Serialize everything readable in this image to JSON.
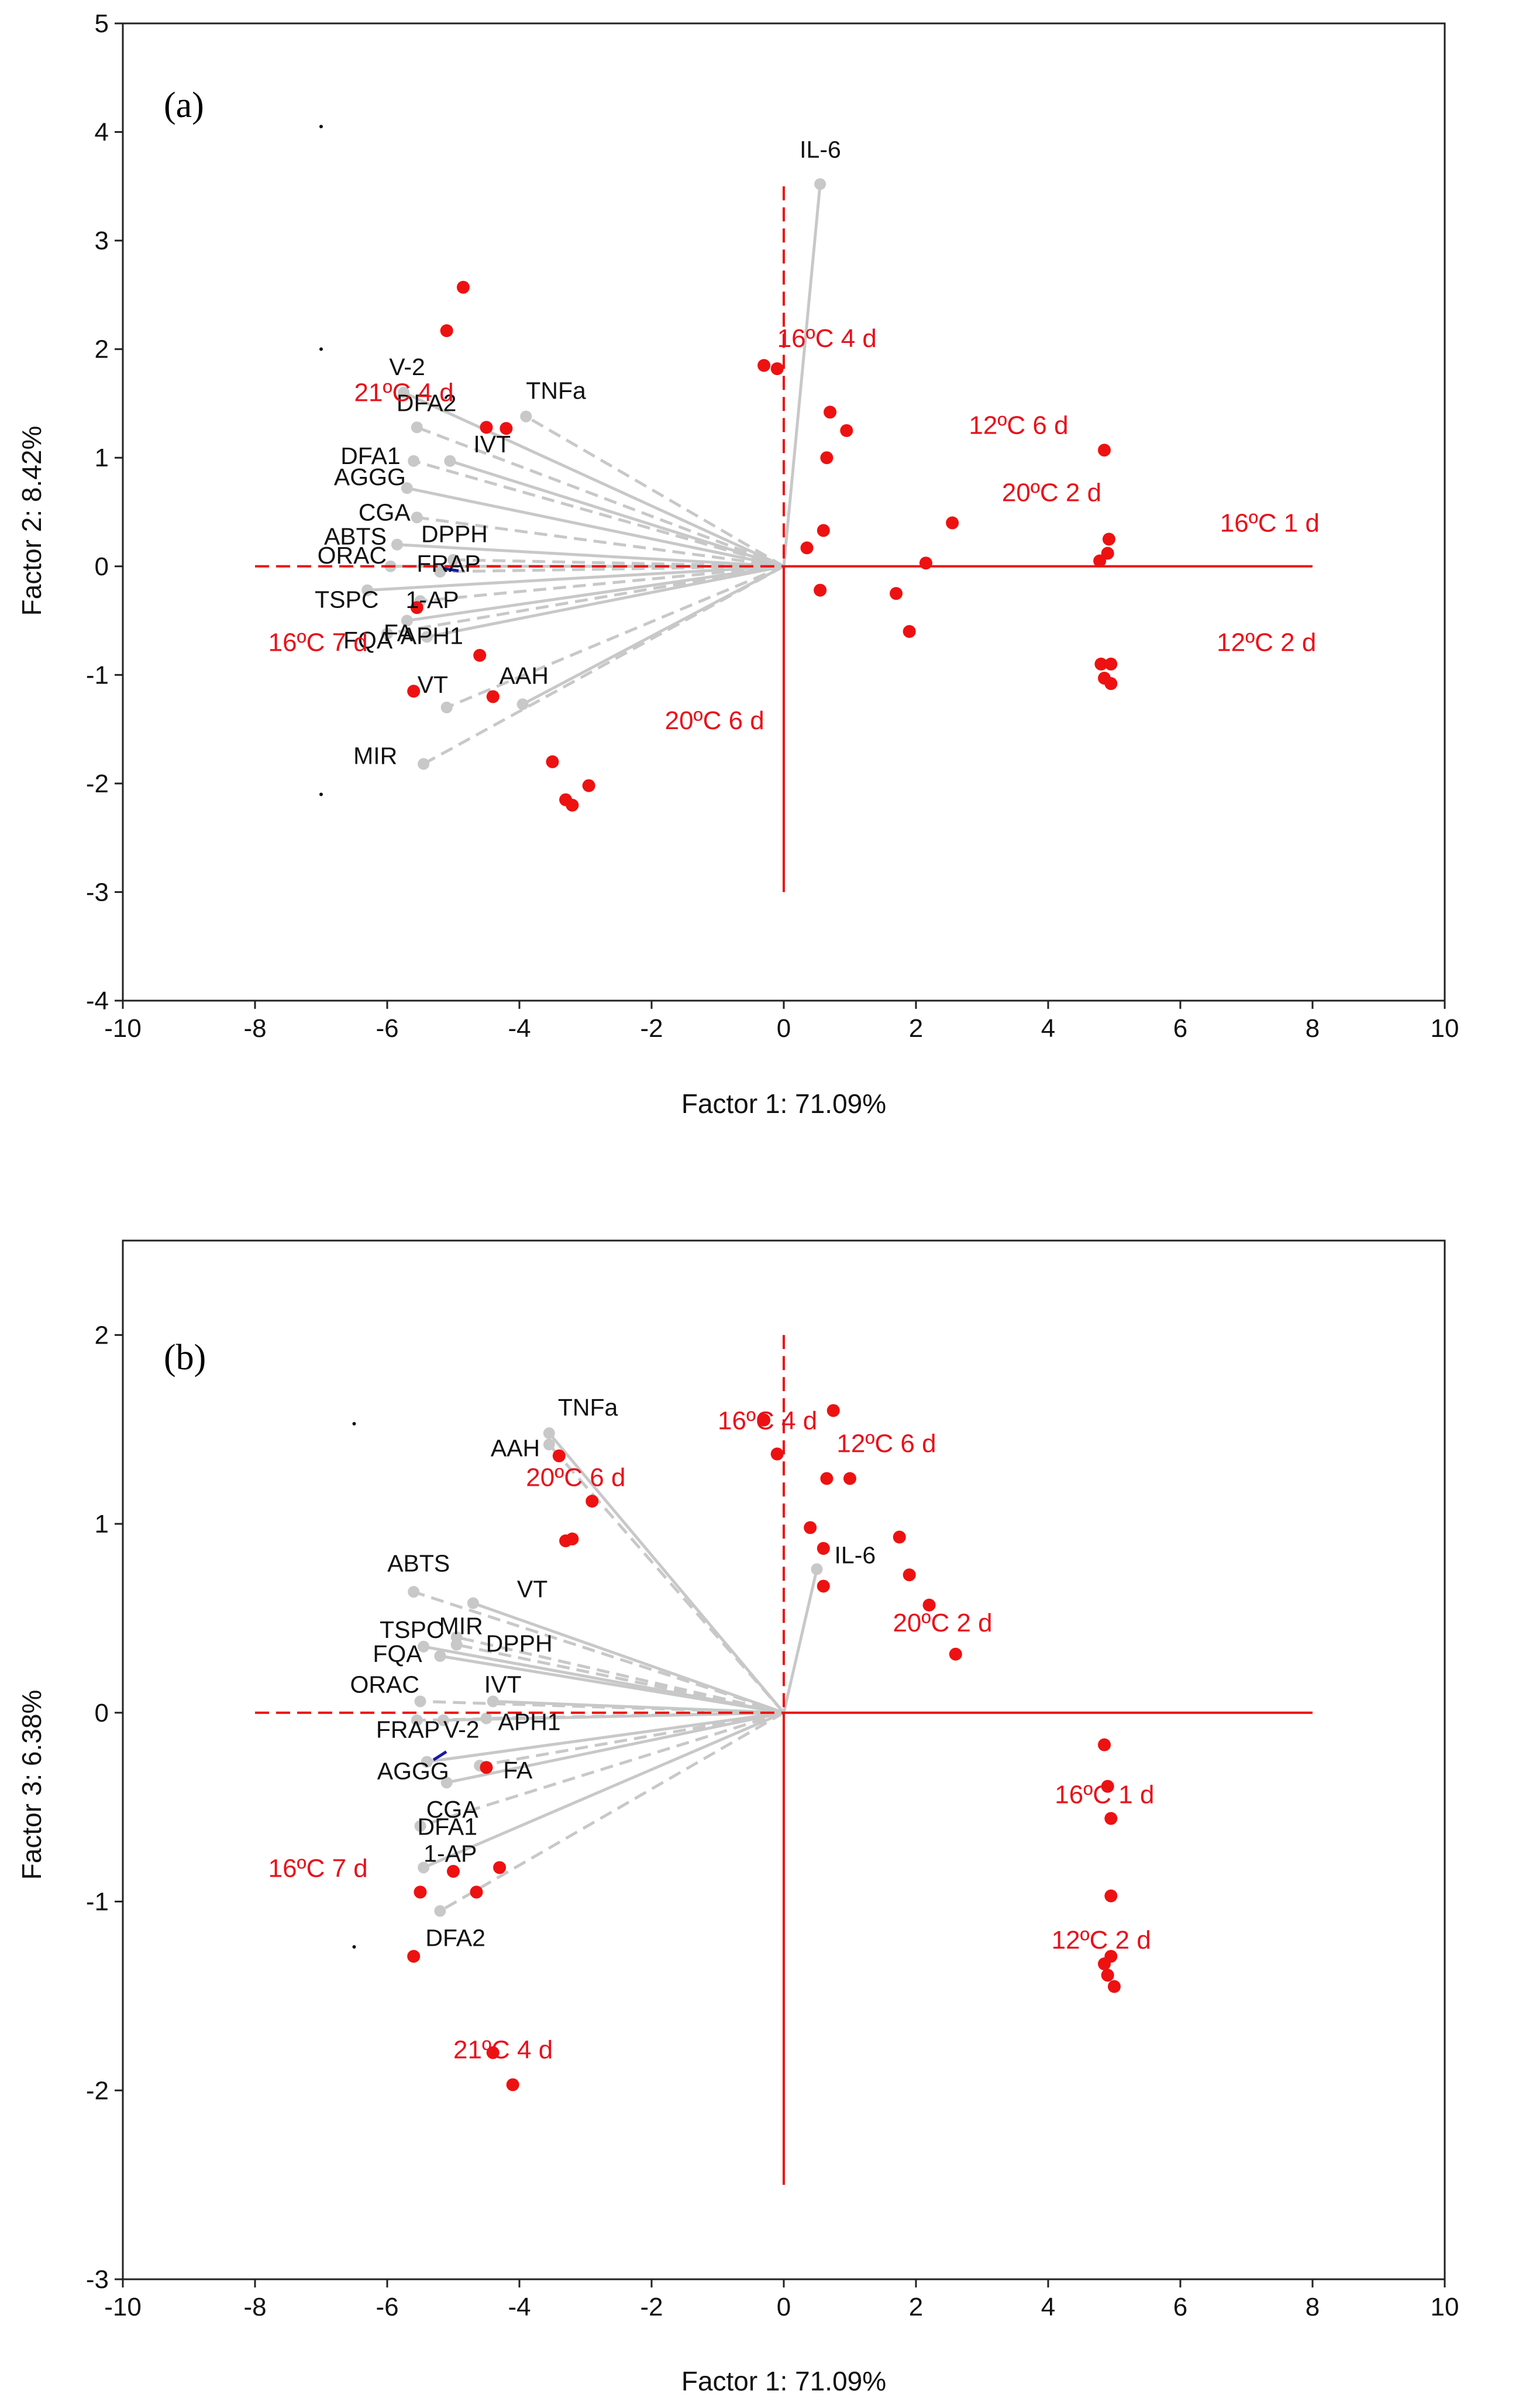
{
  "colors": {
    "observation": "#ee1111",
    "variable": "#c8c8c8",
    "origin_lines": "#ee1111",
    "group_label": "#e8101a",
    "axis_frame": "#222222",
    "alt_arrow": "#1a1aa0"
  },
  "chart_data": [
    {
      "type": "scatter",
      "panel_label": "(a)",
      "title": "",
      "xlabel": "Factor 1: 71.09%",
      "ylabel": "Factor 2:  8.42%",
      "xlim": [
        -10,
        10
      ],
      "ylim": [
        -4,
        5
      ],
      "xticks": [
        -10,
        -8,
        -6,
        -4,
        -2,
        0,
        2,
        4,
        6,
        8,
        10
      ],
      "yticks": [
        -4,
        -3,
        -2,
        -1,
        0,
        1,
        2,
        3,
        4,
        5
      ],
      "origin_lines": {
        "x_range": [
          -8,
          8
        ],
        "y_range": [
          -3,
          3.5
        ]
      },
      "variables": [
        {
          "name": "IL-6",
          "x": 0.55,
          "y": 3.52
        },
        {
          "name": "TNFa",
          "x": -3.9,
          "y": 1.38
        },
        {
          "name": "V-2",
          "x": -5.75,
          "y": 1.6
        },
        {
          "name": "DFA2",
          "x": -5.55,
          "y": 1.28
        },
        {
          "name": "IVT",
          "x": -5.05,
          "y": 0.97
        },
        {
          "name": "DFA1",
          "x": -5.6,
          "y": 0.97
        },
        {
          "name": "AGGG",
          "x": -5.7,
          "y": 0.72
        },
        {
          "name": "CGA",
          "x": -5.55,
          "y": 0.45
        },
        {
          "name": "ABTS",
          "x": -5.85,
          "y": 0.2
        },
        {
          "name": "DPPH",
          "x": -5.0,
          "y": 0.06
        },
        {
          "name": "ORAC",
          "x": -5.95,
          "y": 0.0
        },
        {
          "name": "FRAP",
          "x": -5.2,
          "y": -0.05
        },
        {
          "name": "TSPC",
          "x": -6.3,
          "y": -0.22
        },
        {
          "name": "1-AP",
          "x": -5.5,
          "y": -0.32
        },
        {
          "name": "FA",
          "x": -5.7,
          "y": -0.5
        },
        {
          "name": "FQA",
          "x": -6.0,
          "y": -0.62
        },
        {
          "name": "APH1",
          "x": -5.4,
          "y": -0.65
        },
        {
          "name": "VT",
          "x": -5.1,
          "y": -1.3
        },
        {
          "name": "AAH",
          "x": -3.95,
          "y": -1.27
        },
        {
          "name": "MIR",
          "x": -5.45,
          "y": -1.82
        }
      ],
      "groups": [
        {
          "label": "21ºC 4 d",
          "x": -6.5,
          "y": 1.52
        },
        {
          "label": "16ºC 4 d",
          "x": -0.1,
          "y": 2.02
        },
        {
          "label": "12ºC 6 d",
          "x": 2.8,
          "y": 1.22
        },
        {
          "label": "20ºC 2 d",
          "x": 3.3,
          "y": 0.6
        },
        {
          "label": "16ºC 1 d",
          "x": 6.6,
          "y": 0.32
        },
        {
          "label": "12ºC 2 d",
          "x": 6.55,
          "y": -0.78
        },
        {
          "label": "16ºC 7 d",
          "x": -7.8,
          "y": -0.78
        },
        {
          "label": "20ºC 6 d",
          "x": -1.8,
          "y": -1.5
        }
      ],
      "observations": [
        {
          "x": -4.85,
          "y": 2.57
        },
        {
          "x": -5.1,
          "y": 2.17
        },
        {
          "x": -4.5,
          "y": 1.28
        },
        {
          "x": -4.2,
          "y": 1.27
        },
        {
          "x": -5.55,
          "y": -0.38
        },
        {
          "x": -5.6,
          "y": -1.15
        },
        {
          "x": -4.6,
          "y": -0.82
        },
        {
          "x": -4.4,
          "y": -1.2
        },
        {
          "x": -3.5,
          "y": -1.8
        },
        {
          "x": -3.3,
          "y": -2.15
        },
        {
          "x": -3.2,
          "y": -2.2
        },
        {
          "x": -2.95,
          "y": -2.02
        },
        {
          "x": -0.3,
          "y": 1.85
        },
        {
          "x": -0.1,
          "y": 1.82
        },
        {
          "x": 0.7,
          "y": 1.42
        },
        {
          "x": 0.95,
          "y": 1.25
        },
        {
          "x": 0.65,
          "y": 1.0
        },
        {
          "x": 0.6,
          "y": 0.33
        },
        {
          "x": 0.35,
          "y": 0.17
        },
        {
          "x": 0.55,
          "y": -0.22
        },
        {
          "x": 2.55,
          "y": 0.4
        },
        {
          "x": 2.15,
          "y": 0.03
        },
        {
          "x": 1.7,
          "y": -0.25
        },
        {
          "x": 1.9,
          "y": -0.6
        },
        {
          "x": 4.85,
          "y": 1.07
        },
        {
          "x": 4.92,
          "y": 0.25
        },
        {
          "x": 4.9,
          "y": 0.12
        },
        {
          "x": 4.78,
          "y": 0.05
        },
        {
          "x": 4.8,
          "y": -0.9
        },
        {
          "x": 4.95,
          "y": -0.9
        },
        {
          "x": 4.85,
          "y": -1.03
        },
        {
          "x": 4.95,
          "y": -1.08
        }
      ]
    },
    {
      "type": "scatter",
      "panel_label": "(b)",
      "title": "",
      "xlabel": "Factor 1: 71.09%",
      "ylabel": "Factor 3:  6.38%",
      "xlim": [
        -10,
        10
      ],
      "ylim": [
        -3,
        2.5
      ],
      "xticks": [
        -10,
        -8,
        -6,
        -4,
        -2,
        0,
        2,
        4,
        6,
        8,
        10
      ],
      "yticks": [
        -3,
        -2,
        -1,
        0,
        1,
        2
      ],
      "origin_lines": {
        "x_range": [
          -8,
          8
        ],
        "y_range": [
          -2.5,
          2.0
        ]
      },
      "variables": [
        {
          "name": "TNFa",
          "x": -3.55,
          "y": 1.48
        },
        {
          "name": "AAH",
          "x": -3.55,
          "y": 1.42
        },
        {
          "name": "IL-6",
          "x": 0.5,
          "y": 0.76
        },
        {
          "name": "ABTS",
          "x": -5.6,
          "y": 0.64
        },
        {
          "name": "VT",
          "x": -4.7,
          "y": 0.58
        },
        {
          "name": "MIR",
          "x": -4.95,
          "y": 0.4
        },
        {
          "name": "TSPC",
          "x": -5.45,
          "y": 0.35
        },
        {
          "name": "DPPH",
          "x": -4.95,
          "y": 0.36
        },
        {
          "name": "FQA",
          "x": -5.2,
          "y": 0.3
        },
        {
          "name": "ORAC",
          "x": -5.5,
          "y": 0.06
        },
        {
          "name": "IVT",
          "x": -4.4,
          "y": 0.06
        },
        {
          "name": "FRAP",
          "x": -5.55,
          "y": -0.04
        },
        {
          "name": "V-2",
          "x": -5.15,
          "y": -0.04
        },
        {
          "name": "APH1",
          "x": -4.5,
          "y": -0.03
        },
        {
          "name": "AGGG",
          "x": -5.4,
          "y": -0.26
        },
        {
          "name": "FA",
          "x": -4.6,
          "y": -0.28
        },
        {
          "name": "CGA",
          "x": -5.1,
          "y": -0.37
        },
        {
          "name": "DFA1",
          "x": -5.5,
          "y": -0.6
        },
        {
          "name": "1-AP",
          "x": -5.45,
          "y": -0.82
        },
        {
          "name": "DFA2",
          "x": -5.2,
          "y": -1.05
        }
      ],
      "groups": [
        {
          "label": "16ºC 4 d",
          "x": -1.0,
          "y": 1.5
        },
        {
          "label": "12ºC 6 d",
          "x": 0.8,
          "y": 1.38
        },
        {
          "label": "20ºC 6 d",
          "x": -3.9,
          "y": 1.2
        },
        {
          "label": "20ºC 2 d",
          "x": 1.65,
          "y": 0.43
        },
        {
          "label": "16ºC 1 d",
          "x": 4.1,
          "y": -0.48
        },
        {
          "label": "16ºC 7 d",
          "x": -7.8,
          "y": -0.87
        },
        {
          "label": "12ºC 2 d",
          "x": 4.05,
          "y": -1.25
        },
        {
          "label": "21ºC 4 d",
          "x": -5.0,
          "y": -1.83
        }
      ],
      "observations": [
        {
          "x": -3.4,
          "y": 1.36
        },
        {
          "x": -2.9,
          "y": 1.12
        },
        {
          "x": -3.3,
          "y": 0.91
        },
        {
          "x": -3.2,
          "y": 0.92
        },
        {
          "x": -4.5,
          "y": -0.29
        },
        {
          "x": -5.0,
          "y": -0.84
        },
        {
          "x": -4.65,
          "y": -0.95
        },
        {
          "x": -4.3,
          "y": -0.82
        },
        {
          "x": -5.5,
          "y": -0.95
        },
        {
          "x": -5.6,
          "y": -1.29
        },
        {
          "x": -4.4,
          "y": -1.8
        },
        {
          "x": -4.1,
          "y": -1.97
        },
        {
          "x": -0.3,
          "y": 1.55
        },
        {
          "x": -0.1,
          "y": 1.37
        },
        {
          "x": 0.75,
          "y": 1.6
        },
        {
          "x": 0.65,
          "y": 1.24
        },
        {
          "x": 1.0,
          "y": 1.24
        },
        {
          "x": 0.4,
          "y": 0.98
        },
        {
          "x": 0.6,
          "y": 0.87
        },
        {
          "x": 0.6,
          "y": 0.67
        },
        {
          "x": 1.75,
          "y": 0.93
        },
        {
          "x": 1.9,
          "y": 0.73
        },
        {
          "x": 2.2,
          "y": 0.57
        },
        {
          "x": 2.6,
          "y": 0.31
        },
        {
          "x": 4.85,
          "y": -0.17
        },
        {
          "x": 4.9,
          "y": -0.39
        },
        {
          "x": 4.95,
          "y": -0.56
        },
        {
          "x": 4.95,
          "y": -0.97
        },
        {
          "x": 4.95,
          "y": -1.29
        },
        {
          "x": 4.85,
          "y": -1.33
        },
        {
          "x": 4.9,
          "y": -1.39
        },
        {
          "x": 5.0,
          "y": -1.45
        }
      ]
    }
  ]
}
